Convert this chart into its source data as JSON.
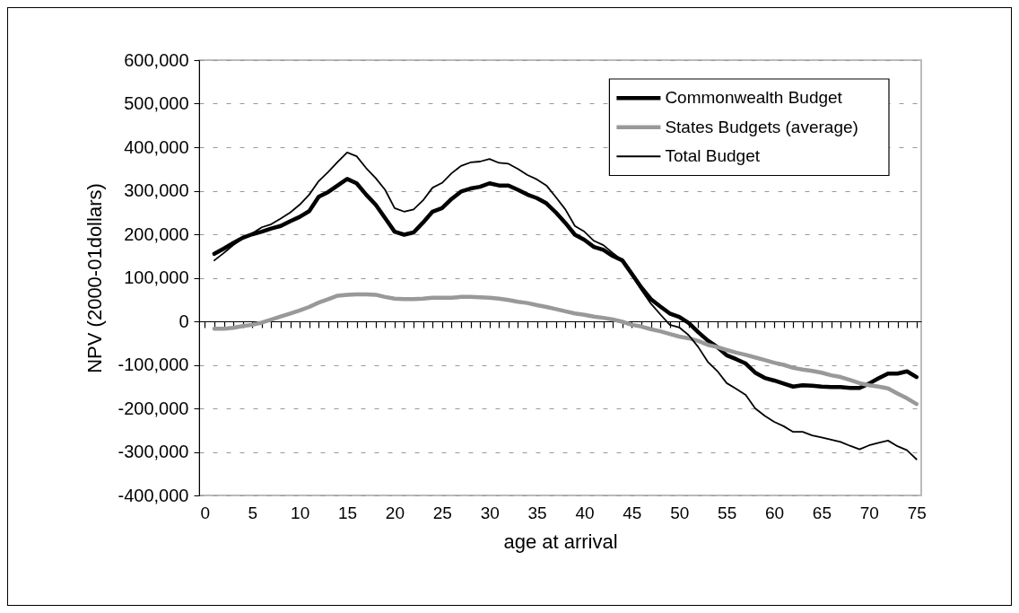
{
  "chart_data": {
    "type": "line",
    "xlabel": "age at arrival",
    "ylabel": "NPV (2000-01dollars)",
    "x": [
      1,
      2,
      3,
      4,
      5,
      6,
      7,
      8,
      9,
      10,
      11,
      12,
      13,
      14,
      15,
      16,
      17,
      18,
      19,
      20,
      21,
      22,
      23,
      24,
      25,
      26,
      27,
      28,
      29,
      30,
      31,
      32,
      33,
      34,
      35,
      36,
      37,
      38,
      39,
      40,
      41,
      42,
      43,
      44,
      45,
      46,
      47,
      48,
      49,
      50,
      51,
      52,
      53,
      54,
      55,
      56,
      57,
      58,
      59,
      60,
      61,
      62,
      63,
      64,
      65,
      66,
      67,
      68,
      69,
      70,
      71,
      72,
      73,
      74,
      75
    ],
    "series": [
      {
        "name": "Commonwealth Budget",
        "color": "#000000",
        "values": [
          155000,
          167000,
          180000,
          192000,
          200000,
          206000,
          213000,
          219000,
          230000,
          240000,
          253000,
          286000,
          297000,
          312000,
          327000,
          317000,
          291000,
          268000,
          237000,
          206000,
          199000,
          204000,
          227000,
          252000,
          260000,
          281000,
          298000,
          305000,
          309000,
          317000,
          312000,
          312000,
          302000,
          291000,
          283000,
          271000,
          250000,
          226000,
          199000,
          187000,
          171000,
          164000,
          150000,
          140000,
          109000,
          78000,
          51000,
          34000,
          18000,
          10000,
          -4000,
          -25000,
          -44000,
          -59000,
          -78000,
          -87000,
          -97000,
          -118000,
          -130000,
          -136000,
          -143000,
          -150000,
          -147000,
          -148000,
          -150000,
          -151000,
          -151000,
          -153000,
          -153000,
          -143000,
          -131000,
          -120000,
          -120000,
          -115000,
          -128000
        ]
      },
      {
        "name": "States Budgets (average)",
        "color": "#999999",
        "values": [
          -17000,
          -17000,
          -15000,
          -11000,
          -8000,
          -3000,
          4000,
          11000,
          18000,
          25000,
          33000,
          43000,
          51000,
          59000,
          61000,
          62000,
          62000,
          61000,
          56000,
          52000,
          51000,
          51000,
          52000,
          54000,
          54000,
          54000,
          56000,
          56000,
          55000,
          54000,
          52000,
          49000,
          45000,
          42000,
          37000,
          33000,
          28000,
          23000,
          18000,
          15000,
          11000,
          8000,
          4000,
          -1000,
          -8000,
          -12000,
          -18000,
          -23000,
          -29000,
          -35000,
          -39000,
          -45000,
          -54000,
          -59000,
          -66000,
          -72000,
          -77000,
          -83000,
          -89000,
          -95000,
          -100000,
          -107000,
          -111000,
          -114000,
          -118000,
          -124000,
          -128000,
          -135000,
          -142000,
          -147000,
          -150000,
          -154000,
          -166000,
          -177000,
          -190000
        ]
      },
      {
        "name": "Total Budget",
        "color": "#000000",
        "values": [
          140000,
          157000,
          175000,
          190000,
          202000,
          216000,
          223000,
          236000,
          250000,
          268000,
          291000,
          322000,
          343000,
          366000,
          388000,
          379000,
          352000,
          329000,
          302000,
          260000,
          252000,
          257000,
          278000,
          307000,
          318000,
          340000,
          357000,
          365000,
          367000,
          373000,
          364000,
          362000,
          350000,
          336000,
          326000,
          312000,
          285000,
          257000,
          219000,
          206000,
          185000,
          175000,
          157000,
          140000,
          106000,
          72000,
          41000,
          16000,
          -8000,
          -14000,
          -32000,
          -59000,
          -93000,
          -114000,
          -142000,
          -155000,
          -169000,
          -200000,
          -217000,
          -231000,
          -241000,
          -254000,
          -254000,
          -262000,
          -267000,
          -272000,
          -277000,
          -286000,
          -294000,
          -285000,
          -279000,
          -274000,
          -287000,
          -296000,
          -317000
        ]
      }
    ],
    "xlim": [
      -0.6,
      75.5
    ],
    "xticks": [
      0,
      {
        "value": 1,
        "label": null
      },
      {
        "value": 2,
        "label": null
      },
      {
        "value": 3,
        "label": null
      },
      {
        "value": 4,
        "label": null
      },
      5,
      {
        "value": 6,
        "label": null
      },
      {
        "value": 7,
        "label": null
      },
      {
        "value": 8,
        "label": null
      },
      {
        "value": 9,
        "label": null
      },
      10,
      {
        "value": 11,
        "label": null
      },
      {
        "value": 12,
        "label": null
      },
      {
        "value": 13,
        "label": null
      },
      {
        "value": 14,
        "label": null
      },
      15,
      {
        "value": 16,
        "label": null
      },
      {
        "value": 17,
        "label": null
      },
      {
        "value": 18,
        "label": null
      },
      {
        "value": 19,
        "label": null
      },
      20,
      {
        "value": 21,
        "label": null
      },
      {
        "value": 22,
        "label": null
      },
      {
        "value": 23,
        "label": null
      },
      {
        "value": 24,
        "label": null
      },
      25,
      {
        "value": 26,
        "label": null
      },
      {
        "value": 27,
        "label": null
      },
      {
        "value": 28,
        "label": null
      },
      {
        "value": 29,
        "label": null
      },
      30,
      {
        "value": 31,
        "label": null
      },
      {
        "value": 32,
        "label": null
      },
      {
        "value": 33,
        "label": null
      },
      {
        "value": 34,
        "label": null
      },
      35,
      {
        "value": 36,
        "label": null
      },
      {
        "value": 37,
        "label": null
      },
      {
        "value": 38,
        "label": null
      },
      {
        "value": 39,
        "label": null
      },
      40,
      {
        "value": 41,
        "label": null
      },
      {
        "value": 42,
        "label": null
      },
      {
        "value": 43,
        "label": null
      },
      {
        "value": 44,
        "label": null
      },
      45,
      {
        "value": 46,
        "label": null
      },
      {
        "value": 47,
        "label": null
      },
      {
        "value": 48,
        "label": null
      },
      {
        "value": 49,
        "label": null
      },
      50,
      {
        "value": 51,
        "label": null
      },
      {
        "value": 52,
        "label": null
      },
      {
        "value": 53,
        "label": null
      },
      {
        "value": 54,
        "label": null
      },
      55,
      {
        "value": 56,
        "label": null
      },
      {
        "value": 57,
        "label": null
      },
      {
        "value": 58,
        "label": null
      },
      {
        "value": 59,
        "label": null
      },
      60,
      {
        "value": 61,
        "label": null
      },
      {
        "value": 62,
        "label": null
      },
      {
        "value": 63,
        "label": null
      },
      {
        "value": 64,
        "label": null
      },
      65,
      {
        "value": 66,
        "label": null
      },
      {
        "value": 67,
        "label": null
      },
      {
        "value": 68,
        "label": null
      },
      {
        "value": 69,
        "label": null
      },
      70,
      {
        "value": 71,
        "label": null
      },
      {
        "value": 72,
        "label": null
      },
      {
        "value": 73,
        "label": null
      },
      {
        "value": 74,
        "label": null
      },
      75
    ],
    "ylim": [
      -400000,
      600000
    ],
    "yticks": [
      {
        "value": -400000,
        "label": "-400,000"
      },
      {
        "value": -300000,
        "label": "-300,000"
      },
      {
        "value": -200000,
        "label": "-200,000"
      },
      {
        "value": -100000,
        "label": "-100,000"
      },
      0,
      {
        "value": 100000,
        "label": "100,000"
      },
      {
        "value": 200000,
        "label": "200,000"
      },
      {
        "value": 300000,
        "label": "300,000"
      },
      {
        "value": 400000,
        "label": "400,000"
      },
      {
        "value": 500000,
        "label": "500,000"
      },
      {
        "value": 600000,
        "label": "600,000"
      }
    ],
    "grid": "y",
    "legend": "top right",
    "marker": "none",
    "line_style": "solid"
  }
}
